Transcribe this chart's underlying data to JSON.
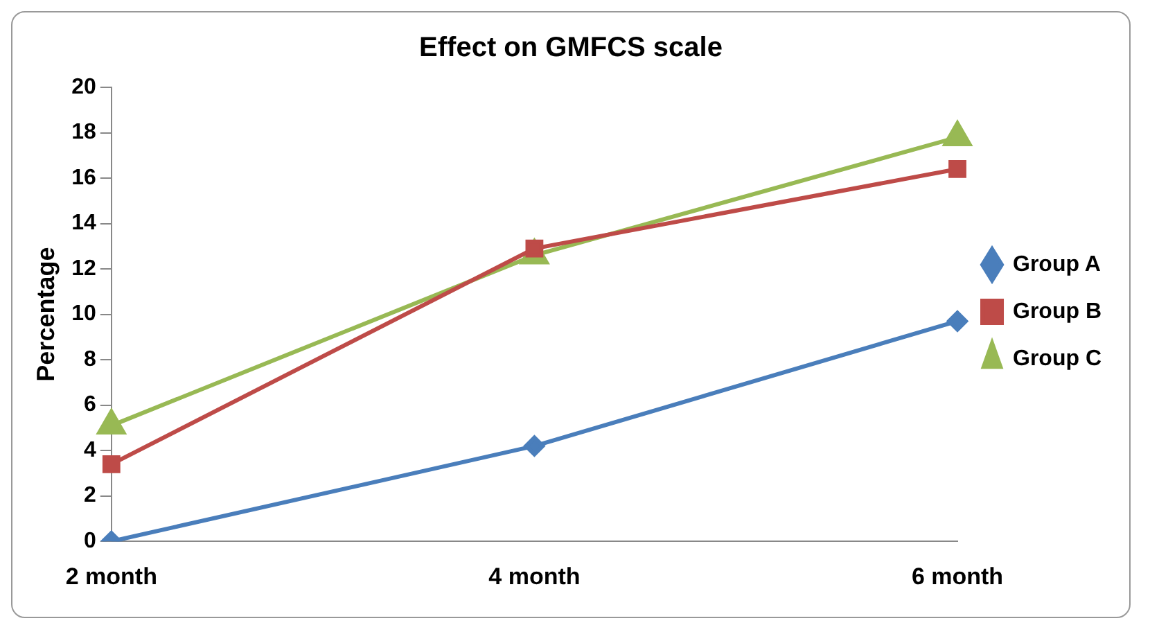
{
  "chart_data": {
    "type": "line",
    "title": "Effect on GMFCS scale",
    "ylabel": "Percentage",
    "categories": [
      "2 month",
      "4 month",
      "6 month"
    ],
    "series": [
      {
        "name": "Group A",
        "color": "#4a7ebb",
        "values": [
          0,
          4.2,
          9.7
        ],
        "marker": "diamond"
      },
      {
        "name": "Group B",
        "color": "#be4b48",
        "values": [
          3.4,
          12.9,
          16.4
        ],
        "marker": "square"
      },
      {
        "name": "Group C",
        "color": "#98b954",
        "values": [
          5.1,
          12.6,
          17.8
        ],
        "marker": "triangle"
      }
    ],
    "ylim": [
      0,
      20
    ],
    "yticks": [
      0,
      2,
      4,
      6,
      8,
      10,
      12,
      14,
      16,
      18,
      20
    ],
    "grid": false,
    "legend": "right",
    "line_style": "solid"
  }
}
